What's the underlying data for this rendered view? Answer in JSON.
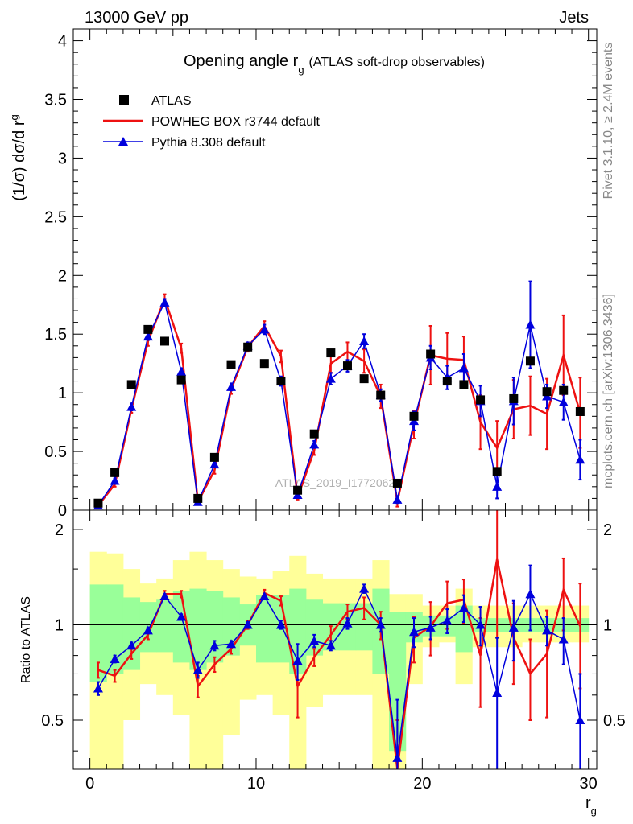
{
  "header": {
    "left": "13000 GeV pp",
    "right": "Jets"
  },
  "side_labels": {
    "rivet": "Rivet 3.1.10, ≥ 2.4M events",
    "mcplots": "mcplots.cern.ch [arXiv:1306.3436]"
  },
  "watermark": "ATLAS_2019_I1772062",
  "chart_data": [
    {
      "type": "scatter",
      "title": "Opening angle r_g (ATLAS soft-drop observables)",
      "title_main": "Opening angle r",
      "title_sub": "g",
      "title_rest": "(ATLAS soft-drop observables)",
      "xlabel": "r_g",
      "xlabel_main": "r",
      "xlabel_sub": "g",
      "ylabel": "(1/σ) dσ/d r_g",
      "ylabel_main": "(1/σ) dσ/d r",
      "ylabel_sub": "g",
      "xlim": [
        -1,
        30.5
      ],
      "ylim": [
        0,
        4.1
      ],
      "x_ticks": [
        0,
        10,
        20,
        30
      ],
      "x_tick_labels": [
        "0",
        "10",
        "20",
        "30"
      ],
      "y_ticks": [
        0,
        0.5,
        1,
        1.5,
        2,
        2.5,
        3,
        3.5,
        4
      ],
      "y_tick_labels": [
        "0",
        "0.5",
        "1",
        "1.5",
        "2",
        "2.5",
        "3",
        "3.5",
        "4"
      ],
      "legend_position": "top-left",
      "legend": [
        {
          "label": "ATLAS",
          "marker": "square",
          "color": "#000000"
        },
        {
          "label": "POWHEG BOX r3744 default",
          "marker": "line",
          "color": "#ee1111"
        },
        {
          "label": "Pythia 8.308 default",
          "marker": "triangle",
          "color": "#0000dd"
        }
      ],
      "x": [
        0.5,
        1.5,
        2.5,
        3.5,
        4.5,
        5.5,
        6.5,
        7.5,
        8.5,
        9.5,
        10.5,
        11.5,
        12.5,
        13.5,
        14.5,
        15.5,
        16.5,
        17.5,
        18.5,
        19.5,
        20.5,
        21.5,
        22.5,
        23.5,
        24.5,
        25.5,
        26.5,
        27.5,
        28.5,
        29.5
      ],
      "series": [
        {
          "name": "ATLAS",
          "color": "#000000",
          "values": [
            0.06,
            0.32,
            1.07,
            1.54,
            1.44,
            1.11,
            0.1,
            0.45,
            1.24,
            1.39,
            1.25,
            1.1,
            0.17,
            0.65,
            1.34,
            1.23,
            1.12,
            0.98,
            0.23,
            0.8,
            1.33,
            1.1,
            1.07,
            0.94,
            0.33,
            0.95,
            1.27,
            1.01,
            1.02,
            0.84
          ]
        },
        {
          "name": "POWHEG BOX r3744 default",
          "color": "#ee1111",
          "values": [
            0.04,
            0.22,
            0.86,
            1.44,
            1.8,
            1.38,
            0.07,
            0.34,
            1.03,
            1.39,
            1.57,
            1.31,
            0.11,
            0.51,
            1.25,
            1.35,
            1.27,
            0.97,
            0.07,
            0.73,
            1.32,
            1.29,
            1.28,
            0.75,
            0.53,
            0.86,
            0.89,
            0.82,
            1.32,
            0.83
          ],
          "errors": [
            0.01,
            0.02,
            0.03,
            0.04,
            0.04,
            0.04,
            0.01,
            0.03,
            0.04,
            0.04,
            0.04,
            0.05,
            0.02,
            0.04,
            0.08,
            0.08,
            0.1,
            0.1,
            0.04,
            0.12,
            0.25,
            0.22,
            0.2,
            0.23,
            0.23,
            0.25,
            0.25,
            0.3,
            0.34,
            0.3
          ]
        },
        {
          "name": "Pythia 8.308 default",
          "color": "#0000dd",
          "values": [
            0.04,
            0.25,
            0.88,
            1.48,
            1.77,
            1.18,
            0.07,
            0.39,
            1.05,
            1.4,
            1.54,
            1.1,
            0.13,
            0.56,
            1.12,
            1.23,
            1.44,
            0.98,
            0.09,
            0.76,
            1.3,
            1.13,
            1.21,
            0.93,
            0.2,
            0.93,
            1.58,
            0.97,
            0.92,
            0.43
          ],
          "errors": [
            0.01,
            0.02,
            0.03,
            0.03,
            0.03,
            0.03,
            0.01,
            0.02,
            0.03,
            0.03,
            0.04,
            0.04,
            0.02,
            0.03,
            0.05,
            0.05,
            0.06,
            0.05,
            0.03,
            0.08,
            0.1,
            0.1,
            0.12,
            0.13,
            0.1,
            0.2,
            0.37,
            0.1,
            0.15,
            0.17
          ]
        }
      ]
    },
    {
      "type": "scatter",
      "title": "",
      "xlabel": "r_g",
      "ylabel": "Ratio to ATLAS",
      "xlim": [
        -1,
        30.5
      ],
      "ylim": [
        0.35,
        2.3
      ],
      "y_ticks": [
        0.5,
        1,
        2
      ],
      "y_tick_labels": [
        "0.5",
        "1",
        "2"
      ],
      "x_ticks": [
        0,
        10,
        20,
        30
      ],
      "x_tick_labels": [
        "0",
        "10",
        "20",
        "30"
      ],
      "reference_line": 1,
      "bands": {
        "yellow_color": "#ffff99",
        "green_color": "#99ff99",
        "yellow_lo": [
          0.3,
          0.3,
          0.5,
          0.65,
          0.6,
          0.52,
          0.3,
          0.3,
          0.45,
          0.58,
          0.6,
          0.52,
          0.3,
          0.55,
          0.6,
          0.6,
          0.6,
          0.3,
          0.3,
          0.65,
          0.85,
          0.88,
          0.65,
          0.85,
          0.85,
          0.85,
          0.88,
          0.88,
          0.88,
          0.88
        ],
        "yellow_hi": [
          1.7,
          1.68,
          1.5,
          1.35,
          1.4,
          1.6,
          1.7,
          1.6,
          1.5,
          1.42,
          1.4,
          1.48,
          1.65,
          1.45,
          1.4,
          1.4,
          1.4,
          1.6,
          1.25,
          1.25,
          1.15,
          1.15,
          1.3,
          1.15,
          1.15,
          1.15,
          1.15,
          1.15,
          1.15,
          1.15
        ],
        "green_lo": [
          0.66,
          0.7,
          0.72,
          0.82,
          0.82,
          0.76,
          0.72,
          0.76,
          0.8,
          0.86,
          0.76,
          0.76,
          0.7,
          0.8,
          0.83,
          0.83,
          0.83,
          0.7,
          0.4,
          0.88,
          0.92,
          0.92,
          0.82,
          0.95,
          0.95,
          0.95,
          0.95,
          0.95,
          0.95,
          0.95
        ],
        "green_hi": [
          1.34,
          1.34,
          1.22,
          1.18,
          1.2,
          1.28,
          1.3,
          1.28,
          1.22,
          1.16,
          1.24,
          1.24,
          1.3,
          1.2,
          1.17,
          1.17,
          1.17,
          1.3,
          1.1,
          1.1,
          1.07,
          1.07,
          1.15,
          1.05,
          1.05,
          1.05,
          1.05,
          1.05,
          1.05,
          1.05
        ]
      },
      "series": [
        {
          "name": "POWHEG BOX r3744 default",
          "color": "#ee1111",
          "values": [
            0.72,
            0.69,
            0.81,
            0.93,
            1.25,
            1.25,
            0.64,
            0.75,
            0.84,
            1.0,
            1.26,
            1.19,
            0.64,
            0.79,
            0.93,
            1.1,
            1.13,
            1.0,
            0.3,
            0.91,
            0.99,
            1.17,
            1.2,
            0.8,
            1.61,
            0.91,
            0.7,
            0.81,
            1.29,
            0.99
          ],
          "errors": [
            0.04,
            0.03,
            0.03,
            0.03,
            0.03,
            0.03,
            0.05,
            0.04,
            0.03,
            0.03,
            0.03,
            0.04,
            0.13,
            0.05,
            0.06,
            0.06,
            0.09,
            0.1,
            0.2,
            0.15,
            0.19,
            0.2,
            0.19,
            0.25,
            0.7,
            0.26,
            0.2,
            0.3,
            0.33,
            0.36
          ]
        },
        {
          "name": "Pythia 8.308 default",
          "color": "#0000dd",
          "values": [
            0.63,
            0.78,
            0.86,
            0.96,
            1.23,
            1.06,
            0.72,
            0.86,
            0.87,
            1.0,
            1.23,
            1.0,
            0.77,
            0.89,
            0.86,
            1.01,
            1.3,
            1.0,
            0.38,
            0.95,
            0.98,
            1.03,
            1.13,
            1.0,
            0.61,
            0.98,
            1.25,
            0.96,
            0.9,
            0.5
          ],
          "errors": [
            0.03,
            0.02,
            0.02,
            0.02,
            0.02,
            0.02,
            0.04,
            0.03,
            0.02,
            0.02,
            0.02,
            0.03,
            0.1,
            0.04,
            0.03,
            0.04,
            0.04,
            0.05,
            0.2,
            0.1,
            0.08,
            0.09,
            0.11,
            0.14,
            0.3,
            0.21,
            0.29,
            0.1,
            0.15,
            0.2
          ]
        }
      ]
    }
  ]
}
